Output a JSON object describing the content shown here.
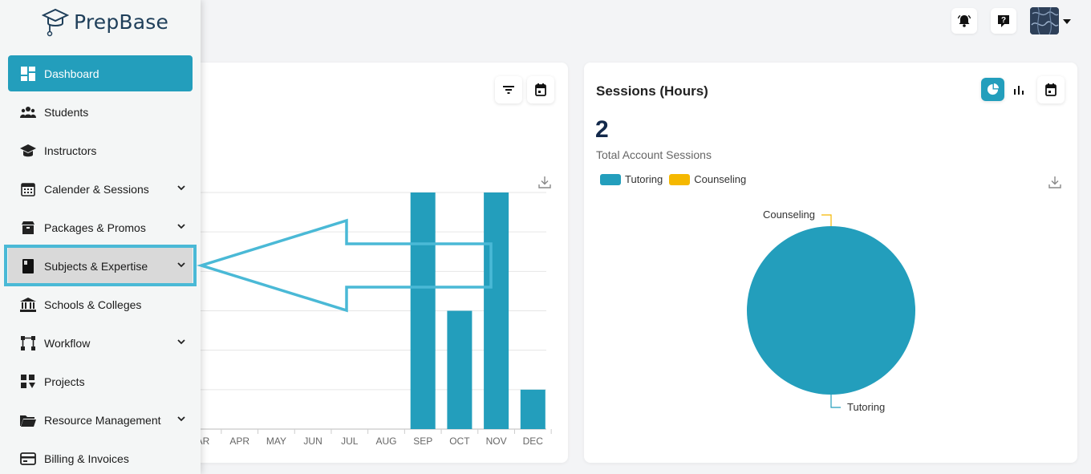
{
  "brand": {
    "name": "PrepBase"
  },
  "sidebar": {
    "items": [
      {
        "label": "Dashboard",
        "icon": "dashboard-icon",
        "active": true,
        "has_chevron": false
      },
      {
        "label": "Students",
        "icon": "users-icon",
        "has_chevron": false
      },
      {
        "label": "Instructors",
        "icon": "graduation-cap-icon",
        "has_chevron": false
      },
      {
        "label": "Calender & Sessions",
        "icon": "calendar-icon",
        "has_chevron": true
      },
      {
        "label": "Packages & Promos",
        "icon": "box-icon",
        "has_chevron": true
      },
      {
        "label": "Subjects & Expertise",
        "icon": "book-icon",
        "has_chevron": true,
        "highlighted": true
      },
      {
        "label": "Schools & Colleges",
        "icon": "bank-icon",
        "has_chevron": false
      },
      {
        "label": "Workflow",
        "icon": "workflow-icon",
        "has_chevron": true
      },
      {
        "label": "Projects",
        "icon": "projects-icon",
        "has_chevron": false
      },
      {
        "label": "Resource Management",
        "icon": "folder-icon",
        "has_chevron": true
      },
      {
        "label": "Billing & Invoices",
        "icon": "credit-card-icon",
        "has_chevron": false
      }
    ]
  },
  "topbar": {
    "icons": [
      "bell-icon",
      "help-icon"
    ],
    "avatar": "avatar"
  },
  "colors": {
    "accent": "#239ebc",
    "counseling": "#f5b800",
    "highlight_border": "#4ab9d6",
    "dark_blue": "#13294b"
  },
  "chart_data": [
    {
      "type": "bar",
      "categories": [
        "AR",
        "APR",
        "MAY",
        "JUN",
        "JUL",
        "AUG",
        "SEP",
        "OCT",
        "NOV",
        "DEC"
      ],
      "values": [
        0,
        0,
        0,
        0,
        0,
        0,
        6,
        3,
        6,
        1
      ],
      "ylim": [
        0,
        6
      ],
      "grid": true,
      "color": "#239ebc"
    },
    {
      "type": "pie",
      "title": "Sessions (Hours)",
      "total_value": "2",
      "total_label": "Total Account Sessions",
      "series": [
        {
          "name": "Tutoring",
          "value": 2,
          "color": "#239ebc"
        },
        {
          "name": "Counseling",
          "value": 0,
          "color": "#f5b800"
        }
      ],
      "legend_placement": "top-left"
    }
  ]
}
